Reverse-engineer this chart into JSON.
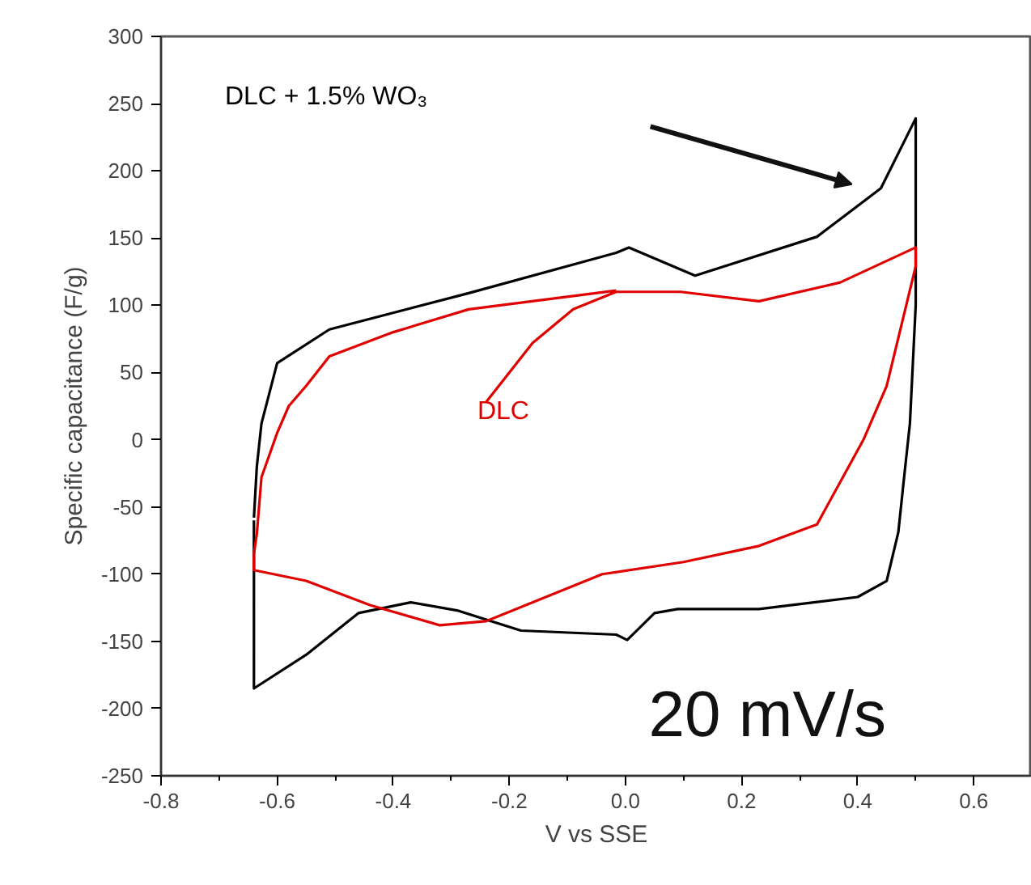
{
  "chart_data": {
    "type": "line",
    "xlabel": "V vs SSE",
    "ylabel": "Specific capacitance (F/g)",
    "xlim": [
      -0.8,
      0.7
    ],
    "ylim": [
      -250,
      300
    ],
    "xticks": [
      -0.8,
      {
        "value": -0.7,
        "label": null
      },
      -0.6,
      {
        "value": -0.5,
        "label": null
      },
      -0.4,
      {
        "value": -0.3,
        "label": null
      },
      -0.2,
      {
        "value": -0.1,
        "label": null
      },
      {
        "value": 0,
        "label": "0.0"
      },
      {
        "value": 0.1,
        "label": null
      },
      0.2,
      {
        "value": 0.3,
        "label": null
      },
      0.4,
      {
        "value": 0.5,
        "label": null
      },
      0.6
    ],
    "yticks": [
      -250,
      -200,
      -150,
      -100,
      -50,
      0,
      50,
      100,
      150,
      200,
      250,
      300
    ],
    "grid": false,
    "marker": "none",
    "line_style": "solid",
    "annotations": [
      "20 mV/s"
    ],
    "series": [
      {
        "name": "DLC  +   1.5% WO₃",
        "color": "#000000",
        "x": [
          -0.64,
          -0.64,
          -0.55,
          -0.46,
          -0.37,
          -0.29,
          -0.18,
          -0.016,
          0.003,
          0.05,
          0.09,
          0.23,
          0.4,
          0.45,
          0.47,
          0.48,
          0.49,
          0.5,
          0.5,
          0.44,
          0.33,
          0.12,
          0.006,
          -0.016,
          -0.27,
          -0.51,
          -0.6,
          -0.627,
          -0.635,
          -0.64
        ],
        "values": [
          -60,
          -185,
          -160,
          -129,
          -121,
          -127,
          -142,
          -145,
          -149,
          -129,
          -126,
          -126,
          -117,
          -105,
          -69,
          -28,
          12,
          100,
          239,
          187,
          151,
          122,
          143,
          139,
          109,
          82,
          57,
          12,
          -20,
          -58
        ]
      },
      {
        "name": "DLC",
        "color": "#e00000",
        "x": [
          -0.24,
          -0.16,
          -0.09,
          -0.016,
          0.095,
          0.23,
          0.37,
          0.5,
          0.5,
          0.45,
          0.41,
          0.33,
          0.23,
          0.1,
          -0.04,
          -0.24,
          -0.32,
          -0.44,
          -0.55,
          -0.64,
          -0.64,
          -0.635,
          -0.627,
          -0.6,
          -0.58,
          -0.55,
          -0.51,
          -0.4,
          -0.27,
          -0.016
        ],
        "values": [
          28,
          72,
          97,
          110,
          110,
          103,
          117,
          143,
          129,
          40,
          0,
          -63,
          -79,
          -91,
          -100,
          -135,
          -138,
          -123,
          -105,
          -97,
          -85,
          -70,
          -28,
          5,
          25,
          40,
          62,
          80,
          97,
          111
        ]
      }
    ]
  }
}
